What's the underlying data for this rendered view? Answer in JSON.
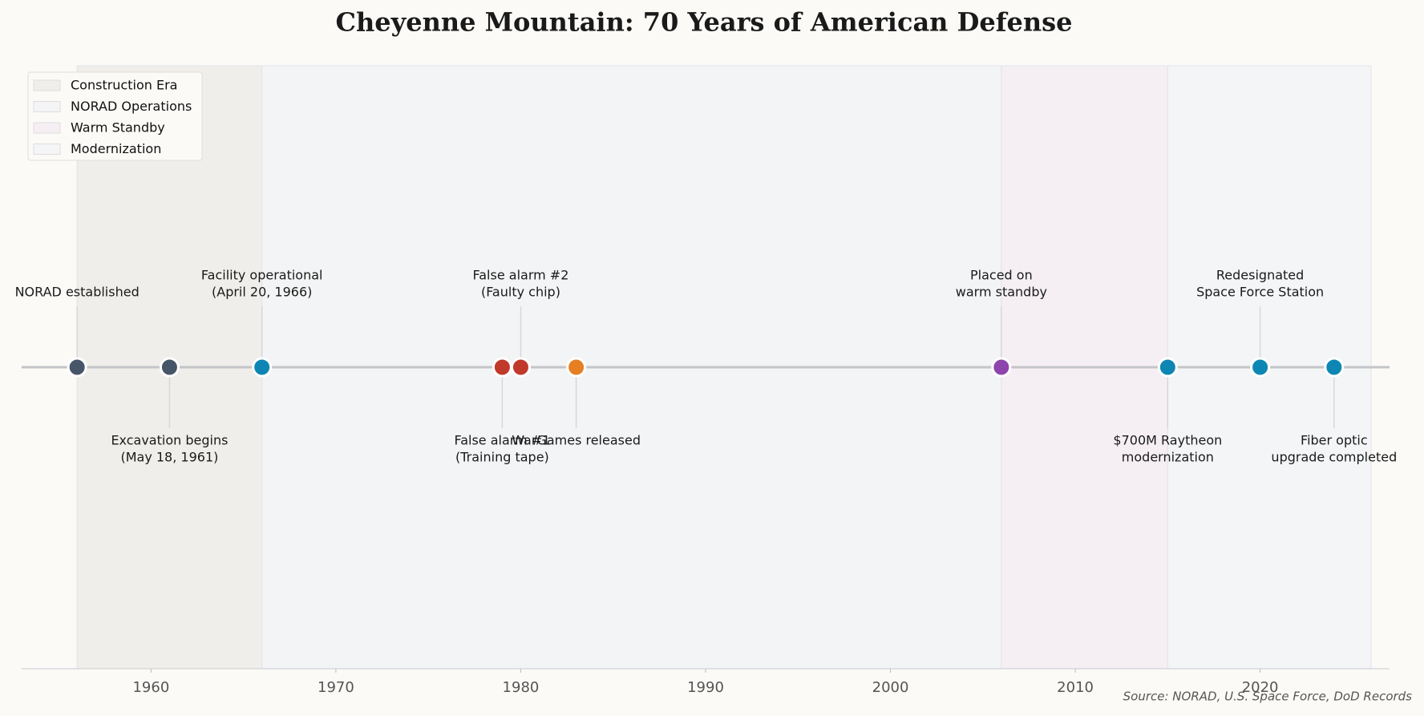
{
  "chart_data": {
    "type": "timeline",
    "title": "Cheyenne Mountain: 70 Years of American Defense",
    "source": "Source: NORAD, U.S. Space Force, DoD Records",
    "xlim": [
      1953,
      2027
    ],
    "xticks": [
      1960,
      1970,
      1980,
      1990,
      2000,
      2010,
      2020
    ],
    "legend": "upper left",
    "spans": [
      {
        "name": "Construction Era",
        "start": 1956,
        "end": 1966,
        "color": "#f0eeea"
      },
      {
        "name": "NORAD Operations",
        "start": 1966,
        "end": 2006,
        "color": "#f3f4f5"
      },
      {
        "name": "Warm Standby",
        "start": 2006,
        "end": 2015,
        "color": "#f5eff3"
      },
      {
        "name": "Modernization",
        "start": 2015,
        "end": 2026,
        "color": "#f3f5f6"
      }
    ],
    "events": [
      {
        "x": 1956,
        "label": [
          "NORAD established"
        ],
        "color": "#475569"
      },
      {
        "x": 1961,
        "label": [
          "Excavation begins",
          "(May 18, 1961)"
        ],
        "color": "#475569"
      },
      {
        "x": 1966,
        "label": [
          "Facility operational",
          "(April 20, 1966)"
        ],
        "color": "#0e86b4"
      },
      {
        "x": 1979,
        "label": [
          "False alarm #1",
          "(Training tape)"
        ],
        "color": "#c0392b"
      },
      {
        "x": 1980,
        "label": [
          "False alarm #2",
          "(Faulty chip)"
        ],
        "color": "#c0392b"
      },
      {
        "x": 1983,
        "label": [
          "WarGames released"
        ],
        "color": "#e67e22"
      },
      {
        "x": 2006,
        "label": [
          "Placed on",
          "warm standby"
        ],
        "color": "#8e44ad"
      },
      {
        "x": 2015,
        "label": [
          "$700M Raytheon",
          "modernization"
        ],
        "color": "#0e86b4"
      },
      {
        "x": 2020,
        "label": [
          "Redesignated",
          "Space Force Station"
        ],
        "color": "#0e86b4"
      },
      {
        "x": 2024,
        "label": [
          "Fiber optic",
          "upgrade completed"
        ],
        "color": "#0e86b4"
      }
    ]
  }
}
